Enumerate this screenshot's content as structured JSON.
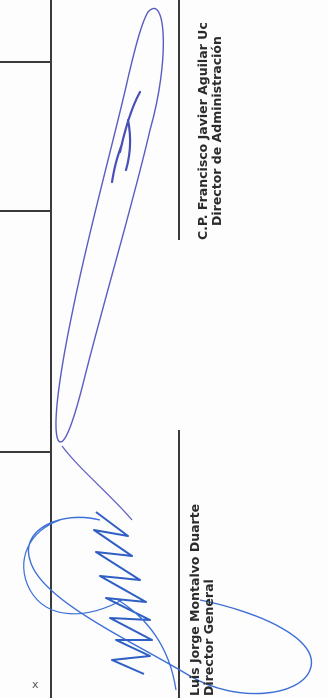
{
  "signatories": [
    {
      "name": "Luis Jorge Montalvo Duarte",
      "title": "Director General"
    },
    {
      "name": "C.P. Francisco Javier Aguilar Uc",
      "title": "Director de Administración"
    }
  ],
  "edge_mark": "x",
  "colors": {
    "ink": "#2b2b2b",
    "rule": "#3a3a3a",
    "signature_blue": "#3b6fd6",
    "signature_purple": "#5a5cc2"
  }
}
